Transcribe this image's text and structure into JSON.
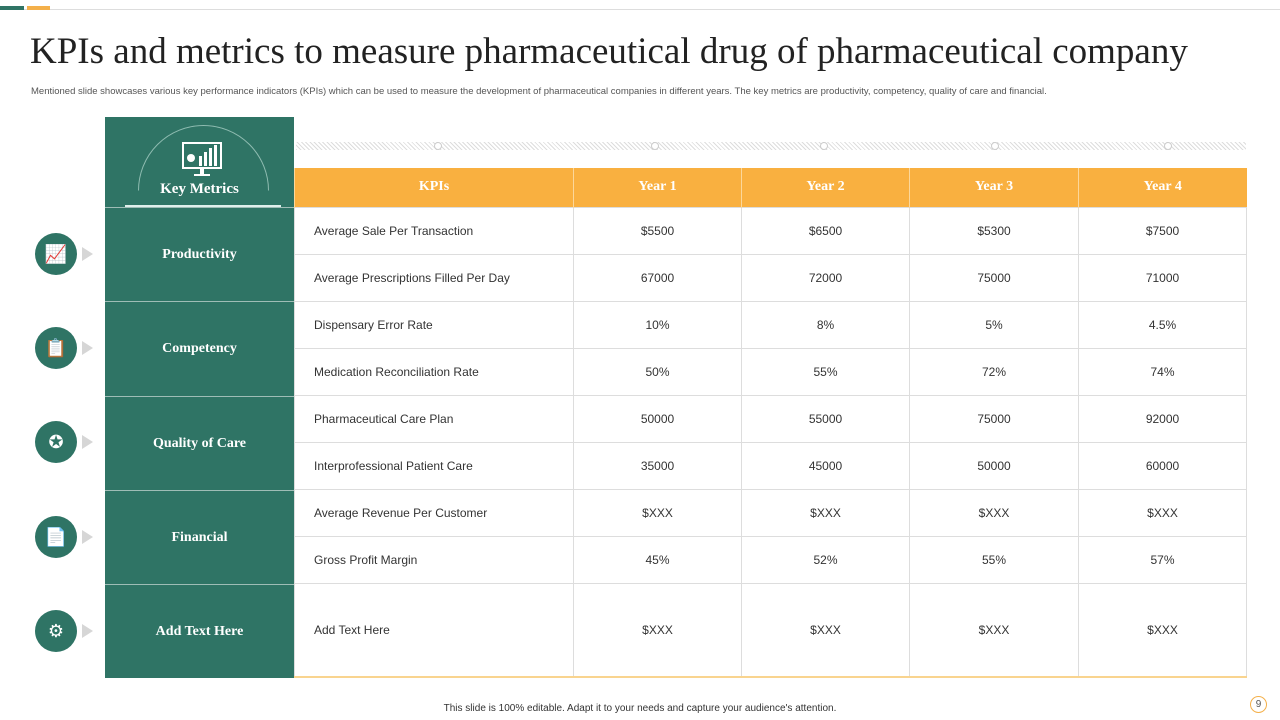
{
  "title": "KPIs and metrics to measure pharmaceutical drug of pharmaceutical company",
  "subtitle": "Mentioned slide showcases various key performance indicators (KPIs) which can be used to measure the development of pharmaceutical companies in different years. The key metrics are productivity, competency, quality of care and financial.",
  "key_metrics": "Key Metrics",
  "categories": [
    {
      "label": "Productivity",
      "icon": "growth-chart-icon"
    },
    {
      "label": "Competency",
      "icon": "clipboard-icon"
    },
    {
      "label": "Quality of Care",
      "icon": "award-badge-icon"
    },
    {
      "label": "Financial",
      "icon": "financial-report-icon"
    },
    {
      "label": "Add Text Here",
      "icon": "monitor-gear-icon"
    }
  ],
  "headers": [
    "KPIs",
    "Year 1",
    "Year 2",
    "Year 3",
    "Year 4"
  ],
  "rows": [
    [
      "Average Sale Per Transaction",
      "$5500",
      "$6500",
      "$5300",
      "$7500"
    ],
    [
      "Average Prescriptions Filled Per Day",
      "67000",
      "72000",
      "75000",
      "71000"
    ],
    [
      "Dispensary Error Rate",
      "10%",
      "8%",
      "5%",
      "4.5%"
    ],
    [
      "Medication Reconciliation Rate",
      "50%",
      "55%",
      "72%",
      "74%"
    ],
    [
      "Pharmaceutical Care Plan",
      "50000",
      "55000",
      "75000",
      "92000"
    ],
    [
      "Interprofessional Patient Care",
      "35000",
      "45000",
      "50000",
      "60000"
    ],
    [
      "Average Revenue Per Customer",
      "$XXX",
      "$XXX",
      "$XXX",
      "$XXX"
    ],
    [
      "Gross Profit Margin",
      "45%",
      "52%",
      "55%",
      "57%"
    ],
    [
      "Add Text Here",
      "$XXX",
      "$XXX",
      "$XXX",
      "$XXX"
    ]
  ],
  "footer": "This slide is 100% editable.  Adapt it to your needs and capture your audience's attention.",
  "page_number": "9",
  "colors": {
    "green": "#2f7465",
    "orange": "#f9b040"
  }
}
